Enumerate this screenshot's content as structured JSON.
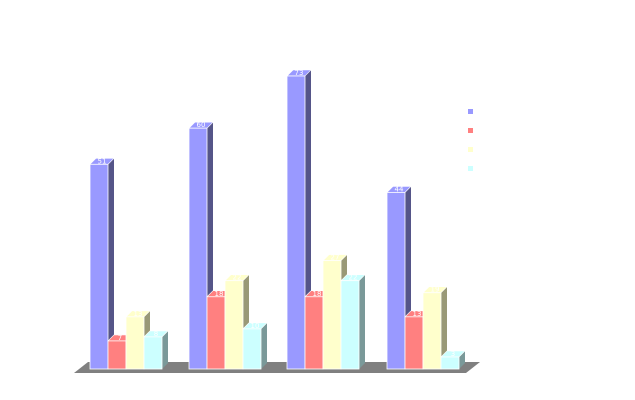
{
  "chart_data": {
    "type": "bar",
    "title": "",
    "xlabel": "",
    "ylabel": "",
    "categories": [
      "",
      "",
      "",
      ""
    ],
    "ylim": [
      0,
      72
    ],
    "grid": false,
    "legend": "right",
    "series": [
      {
        "values": [
          51,
          60,
          73,
          44
        ],
        "color": "#9999ff",
        "side_color": "#555588"
      },
      {
        "values": [
          7,
          18,
          18,
          13
        ],
        "color": "#ff8080",
        "side_color": "#995050"
      },
      {
        "values": [
          13,
          22,
          27,
          19
        ],
        "color": "#ffffcc",
        "side_color": "#999977"
      },
      {
        "values": [
          8,
          10,
          22,
          3
        ],
        "color": "#ccffff",
        "side_color": "#7a9999"
      }
    ]
  }
}
